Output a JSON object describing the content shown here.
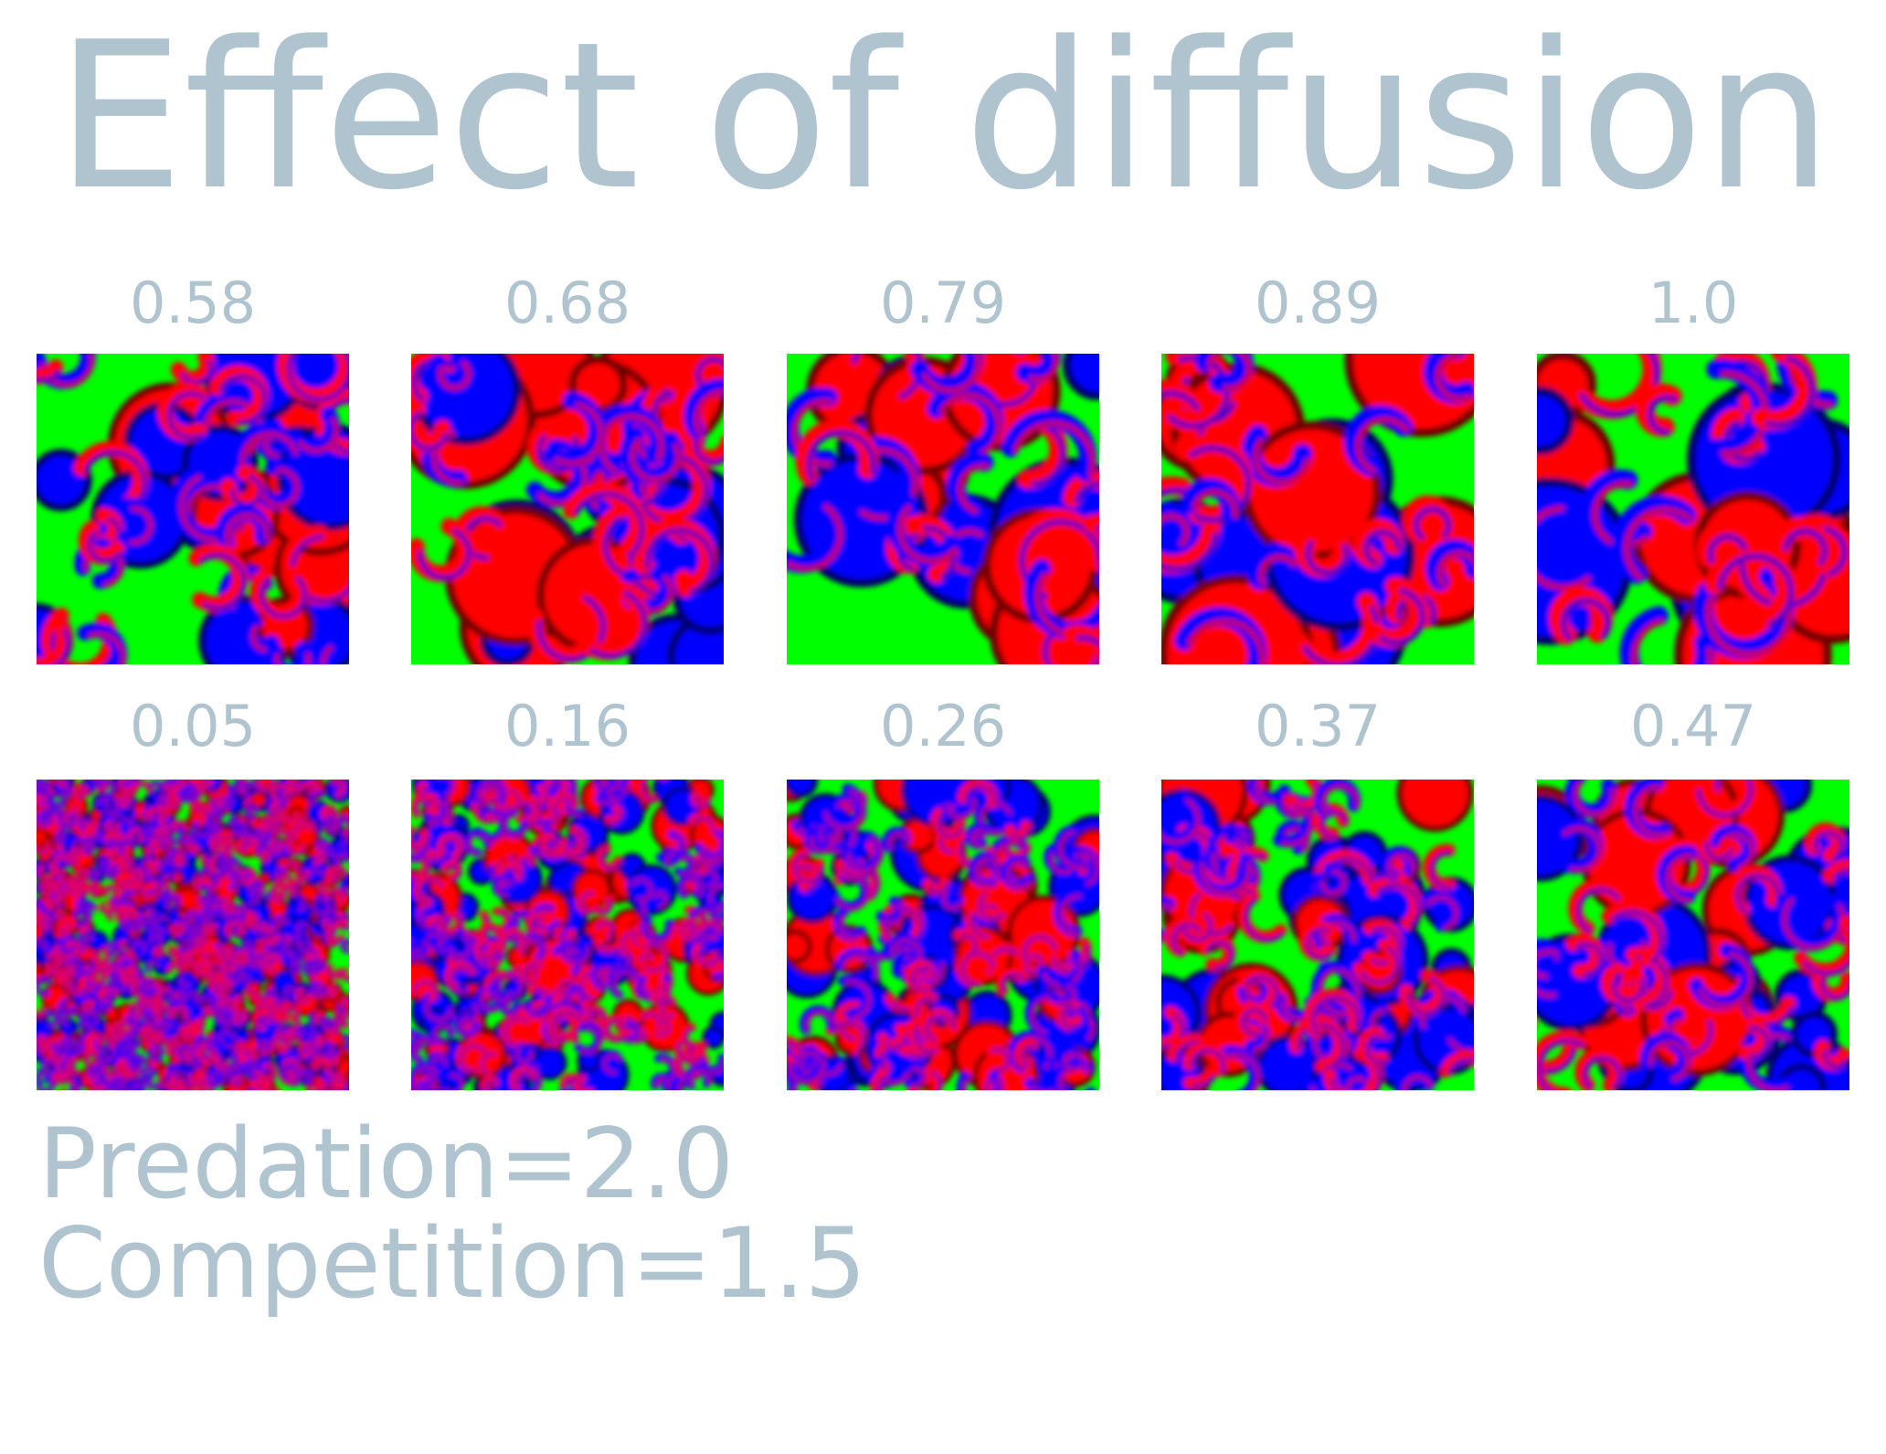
{
  "title": "Effect of diffusion",
  "panels": [
    {
      "label": "0.58"
    },
    {
      "label": "0.68"
    },
    {
      "label": "0.79"
    },
    {
      "label": "0.89"
    },
    {
      "label": "1.0"
    },
    {
      "label": "0.05"
    },
    {
      "label": "0.16"
    },
    {
      "label": "0.26"
    },
    {
      "label": "0.37"
    },
    {
      "label": "0.47"
    }
  ],
  "annotations": [
    "Predation=2.0",
    "Competition=1.5"
  ]
}
